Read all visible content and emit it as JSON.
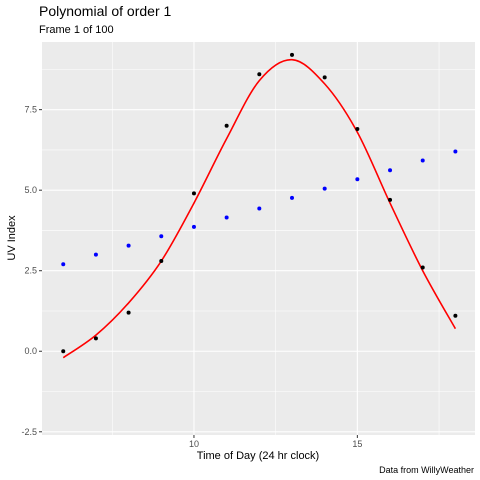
{
  "title": "Polynomial of order 1",
  "subtitle": "Frame 1 of 100",
  "caption": "Data from WillyWeather",
  "chart_data": {
    "type": "scatter",
    "xlabel": "Time of Day (24 hr clock)",
    "ylabel": "UV Index",
    "xlim": [
      5.35,
      18.6
    ],
    "ylim": [
      -2.6,
      9.6
    ],
    "x_ticks": [
      10,
      15
    ],
    "y_ticks": [
      -2.5,
      0.0,
      2.5,
      5.0,
      7.5
    ],
    "y_tick_labels": [
      "-2.5",
      "0.0",
      "2.5",
      "5.0",
      "7.5"
    ],
    "x_tick_labels": [
      "10",
      "15"
    ],
    "grid": true,
    "legend": "none",
    "series": [
      {
        "kind": "observed",
        "color": "#000000",
        "x": [
          6,
          7,
          8,
          9,
          10,
          11,
          12,
          13,
          14,
          15,
          16,
          17,
          18
        ],
        "y": [
          0.0,
          0.4,
          1.2,
          2.8,
          4.9,
          7.0,
          8.6,
          9.2,
          8.5,
          6.9,
          4.7,
          2.6,
          1.1
        ]
      },
      {
        "kind": "fitted",
        "color": "#0000ff",
        "x": [
          6,
          7,
          8,
          9,
          10,
          11,
          12,
          13,
          14,
          15,
          16,
          17,
          18
        ],
        "y": [
          2.7,
          3.0,
          3.28,
          3.57,
          3.86,
          4.15,
          4.43,
          4.76,
          5.05,
          5.34,
          5.62,
          5.92,
          6.2
        ]
      },
      {
        "kind": "smooth",
        "color": "#ff0000",
        "x": [
          6,
          7,
          8,
          9,
          10,
          11,
          12,
          13,
          14,
          15,
          16,
          17,
          18
        ],
        "y": [
          -0.2,
          0.5,
          1.5,
          2.8,
          4.6,
          6.6,
          8.4,
          9.05,
          8.3,
          6.8,
          4.6,
          2.5,
          0.7
        ]
      }
    ]
  }
}
